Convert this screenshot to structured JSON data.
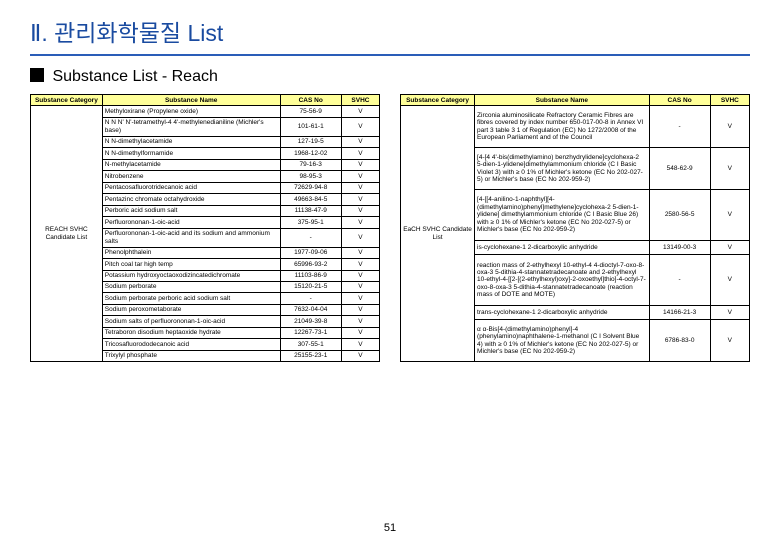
{
  "title": "Ⅱ. 관리화학물질 List",
  "subtitle": "Substance List - Reach",
  "page_number": "51",
  "headers": {
    "cat": "Substance Category",
    "name": "Substance Name",
    "cas": "CAS No",
    "svhc": "SVHC"
  },
  "left_category": "REACH SVHC Candidate List",
  "right_category": "EaCH SVHC Candidate List",
  "left_rows": [
    {
      "name": "Methyloxirane (Propylene oxide)",
      "cas": "75-56-9",
      "svhc": "V"
    },
    {
      "name": "N N N' N'-tetramethyl-4 4'-methylenedianiline (Michler's base)",
      "cas": "101-61-1",
      "svhc": "V"
    },
    {
      "name": "N N-dimethylacetamide",
      "cas": "127-19-5",
      "svhc": "V"
    },
    {
      "name": "N N-dimethylformamide",
      "cas": "1968-12-02",
      "svhc": "V"
    },
    {
      "name": "N-methylacetamide",
      "cas": "79-16-3",
      "svhc": "V"
    },
    {
      "name": "Nitrobenzene",
      "cas": "98-95-3",
      "svhc": "V"
    },
    {
      "name": "Pentacosafluorotridecanoic acid",
      "cas": "72629-94-8",
      "svhc": "V"
    },
    {
      "name": "Pentazinc chromate octahydroxide",
      "cas": "49663-84-5",
      "svhc": "V"
    },
    {
      "name": "Perboric acid  sodium salt",
      "cas": "11138-47-9",
      "svhc": "V"
    },
    {
      "name": "Perfluorononan-1-oic-acid",
      "cas": "375-95-1",
      "svhc": "V"
    },
    {
      "name": "Perfluorononan-1-oic-acid and its sodium and ammonium salts",
      "cas": "-",
      "svhc": "V"
    },
    {
      "name": "Phenolphthalein",
      "cas": "1977-09-06",
      "svhc": "V"
    },
    {
      "name": "Pitch  coal tar  high temp",
      "cas": "65996-93-2",
      "svhc": "V"
    },
    {
      "name": "Potassium hydroxyoctaoxodizincatedichromate",
      "cas": "11103-86-9",
      "svhc": "V"
    },
    {
      "name": "Sodium perborate",
      "cas": "15120-21-5",
      "svhc": "V"
    },
    {
      "name": "Sodium perborate  perboric acid  sodium salt",
      "cas": "-",
      "svhc": "V"
    },
    {
      "name": "Sodium peroxometaborate",
      "cas": "7632-04-04",
      "svhc": "V"
    },
    {
      "name": "Sodium salts of perfluorononan-1-oic-acid",
      "cas": "21049-39-8",
      "svhc": "V"
    },
    {
      "name": "Tetraboron disodium heptaoxide  hydrate",
      "cas": "12267-73-1",
      "svhc": "V"
    },
    {
      "name": "Tricosafluorododecanoic acid",
      "cas": "307-55-1",
      "svhc": "V"
    },
    {
      "name": "Trixylyl phosphate",
      "cas": "25155-23-1",
      "svhc": "V"
    }
  ],
  "right_rows": [
    {
      "name": "Zirconia aluminosilicate Refractory Ceramic Fibres  are fibres covered by index number 650-017-00-8 in Annex VI  part 3  table 3 1 of Regulation (EC) No 1272/2008 of the European Parliament and of the Council",
      "cas": "-",
      "svhc": "V"
    },
    {
      "name": "[4-[4 4'-bis(dimethylamino) benzhydrylidene]cyclohexa-2 5-dien-1-ylidene]dimethylammonium chloride (C I  Basic Violet 3) with ≥ 0 1% of Michler's ketone (EC No  202-027-5) or Michler's base (EC No  202-959-2)",
      "cas": "548-62-9",
      "svhc": "V"
    },
    {
      "name": "[4-[[4-anilino-1-naphthyl][4-(dimethylamino)phenyl]methylene]cyclohexa-2 5-dien-1-ylidene] dimethylammonium chloride (C I  Basic Blue 26) with ≥ 0 1% of Michler's ketone (EC No  202-027-5) or Michler's base (EC No  202-959-2)",
      "cas": "2580-56-5",
      "svhc": "V"
    },
    {
      "name": "is-cyclohexane-1 2-dicarboxylic anhydride",
      "cas": "13149-00-3",
      "svhc": "V"
    },
    {
      "name": "reaction mass of 2-ethylhexyl 10-ethyl-4 4-dioctyl-7-oxo-8-oxa-3 5-dithia-4-stannatetradecanoate and 2-ethylhexyl 10-ethyl-4-[[2-[(2-ethylhexyl)oxy]-2-oxoethyl]thio]-4-octyl-7-oxo-8-oxa-3 5-dithia-4-stannatetradecanoate (reaction mass of DOTE and MOTE)",
      "cas": "-",
      "svhc": "V"
    },
    {
      "name": "trans-cyclohexane-1 2-dicarboxylic anhydride",
      "cas": "14166-21-3",
      "svhc": "V"
    },
    {
      "name": "α α-Bis[4-(dimethylamino)phenyl]-4 (phenylamino)naphthalene-1-methanol (C I  Solvent Blue 4) with ≥ 0 1% of Michler's ketone (EC No  202-027-5) or Michler's base (EC No  202-959-2)",
      "cas": "6786-83-0",
      "svhc": "V"
    }
  ]
}
